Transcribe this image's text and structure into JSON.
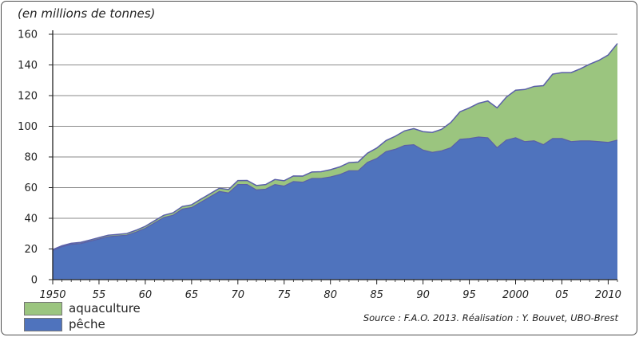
{
  "chart_data": {
    "type": "area",
    "unit_label": "(en millions de tonnes)",
    "source": "Source : F.A.O. 2013. Réalisation : Y. Bouvet, UBO-Brest",
    "ylim": [
      0,
      160
    ],
    "y_ticks": [
      0,
      20,
      40,
      60,
      80,
      100,
      120,
      140,
      160
    ],
    "xlim": [
      1950,
      2011
    ],
    "x_ticks": [
      1950,
      1955,
      1960,
      1965,
      1970,
      1975,
      1980,
      1985,
      1990,
      1995,
      2000,
      2005,
      2010
    ],
    "x_tick_labels": [
      "1950",
      "55",
      "60",
      "65",
      "70",
      "75",
      "80",
      "85",
      "90",
      "95",
      "2000",
      "05",
      "2010"
    ],
    "grid": true,
    "stacked": true,
    "legend": "bottom-left",
    "x": [
      1950,
      1951,
      1952,
      1953,
      1954,
      1955,
      1956,
      1957,
      1958,
      1959,
      1960,
      1961,
      1962,
      1963,
      1964,
      1965,
      1966,
      1967,
      1968,
      1969,
      1970,
      1971,
      1972,
      1973,
      1974,
      1975,
      1976,
      1977,
      1978,
      1979,
      1980,
      1981,
      1982,
      1983,
      1984,
      1985,
      1986,
      1987,
      1988,
      1989,
      1990,
      1991,
      1992,
      1993,
      1994,
      1995,
      1996,
      1997,
      1998,
      1999,
      2000,
      2001,
      2002,
      2003,
      2004,
      2005,
      2006,
      2007,
      2008,
      2009,
      2010,
      2011
    ],
    "series": [
      {
        "name": "pêche",
        "color": "#4f73bd",
        "values": [
          19,
          21.5,
          23,
          23.5,
          25,
          26.5,
          28,
          28.5,
          29,
          31,
          33.5,
          37,
          40.5,
          42,
          46,
          47,
          50.5,
          54,
          57.5,
          56.5,
          62,
          62,
          58.5,
          59,
          62,
          61,
          64,
          63.5,
          66,
          66,
          67,
          68.5,
          71,
          71,
          76.5,
          79,
          83.5,
          85,
          87.5,
          88,
          84.5,
          83,
          84,
          86,
          91.5,
          92,
          93,
          92.5,
          86,
          91,
          92.5,
          90,
          90.5,
          88,
          92,
          92,
          90,
          90.5,
          90.5,
          90,
          89.5,
          91
        ]
      },
      {
        "name": "aquaculture",
        "color": "#9bc57f",
        "values": [
          0.6,
          0.6,
          0.7,
          0.8,
          0.8,
          0.9,
          1,
          1,
          1.1,
          1.2,
          1.3,
          1.4,
          1.5,
          1.6,
          1.7,
          1.8,
          2,
          2,
          2.1,
          2.3,
          2.6,
          2.7,
          2.9,
          3,
          3.3,
          3.5,
          3.6,
          4,
          4.2,
          4.4,
          4.7,
          5,
          5.3,
          5.7,
          6,
          6.8,
          7.2,
          8.5,
          9.5,
          10.5,
          12,
          13,
          14,
          16.5,
          18,
          20,
          22,
          24,
          26,
          28,
          31,
          34,
          35.5,
          38.5,
          42,
          43,
          45,
          47,
          50,
          53,
          57,
          63
        ]
      }
    ]
  },
  "legend": {
    "items": [
      {
        "label": "aquaculture",
        "color": "#9bc57f"
      },
      {
        "label": "pêche",
        "color": "#4f73bd"
      }
    ]
  }
}
